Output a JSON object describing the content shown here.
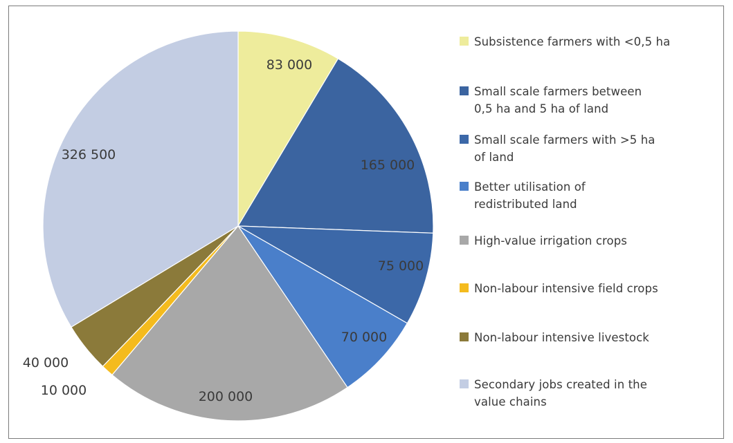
{
  "colors": {
    "subsistence": "#eeec9c",
    "small_05_5": "#3b64a0",
    "small_gt5": "#3c68a8",
    "redistributed": "#4a7fca",
    "irrigation": "#a8a8a8",
    "field_crops": "#f4bb1e",
    "livestock": "#8b7a3a",
    "secondary": "#c3cde3",
    "text": "#3a3a3a",
    "border": "#7a7a7a"
  },
  "chart_data": {
    "type": "pie",
    "title": "",
    "start_angle_deg": 0,
    "direction": "clockwise",
    "legend_position": "right",
    "slices": [
      {
        "label": "Subsistence farmers with <0,5 ha",
        "value": 83000,
        "value_label": "83 000",
        "color": "#eeec9c"
      },
      {
        "label": "Small scale farmers between 0,5 ha and 5 ha of land",
        "value": 165000,
        "value_label": "165 000",
        "color": "#3b64a0"
      },
      {
        "label": "Small scale farmers with >5 ha of land",
        "value": 75000,
        "value_label": "75 000",
        "color": "#3c68a8"
      },
      {
        "label": "Better utilisation of redistributed land",
        "value": 70000,
        "value_label": "70 000",
        "color": "#4a7fca"
      },
      {
        "label": "High-value irrigation crops",
        "value": 200000,
        "value_label": "200 000",
        "color": "#a8a8a8"
      },
      {
        "label": "Non-labour intensive field crops",
        "value": 10000,
        "value_label": "10 000",
        "color": "#f4bb1e"
      },
      {
        "label": "Non-labour intensive livestock",
        "value": 40000,
        "value_label": "40 000",
        "color": "#8b7a3a"
      },
      {
        "label": "Secondary jobs created in the value chains",
        "value": 326500,
        "value_label": "326 500",
        "color": "#c3cde3"
      }
    ]
  },
  "legend": {
    "items": [
      {
        "lines": [
          "Subsistence farmers with <0,5 ha"
        ],
        "color": "#eeec9c"
      },
      {
        "lines": [
          "Small scale farmers between",
          "0,5 ha and 5 ha of land"
        ],
        "color": "#3b64a0"
      },
      {
        "lines": [
          "Small scale farmers with >5 ha",
          "of land"
        ],
        "color": "#3c68a8"
      },
      {
        "lines": [
          "Better utilisation of",
          "redistributed land"
        ],
        "color": "#4a7fca"
      },
      {
        "lines": [
          "High-value irrigation crops"
        ],
        "color": "#a8a8a8"
      },
      {
        "lines": [
          "Non-labour intensive field crops"
        ],
        "color": "#f4bb1e"
      },
      {
        "lines": [
          "Non-labour intensive livestock"
        ],
        "color": "#8b7a3a"
      },
      {
        "lines": [
          "Secondary jobs created in the",
          "value chains"
        ],
        "color": "#c3cde3"
      }
    ]
  }
}
